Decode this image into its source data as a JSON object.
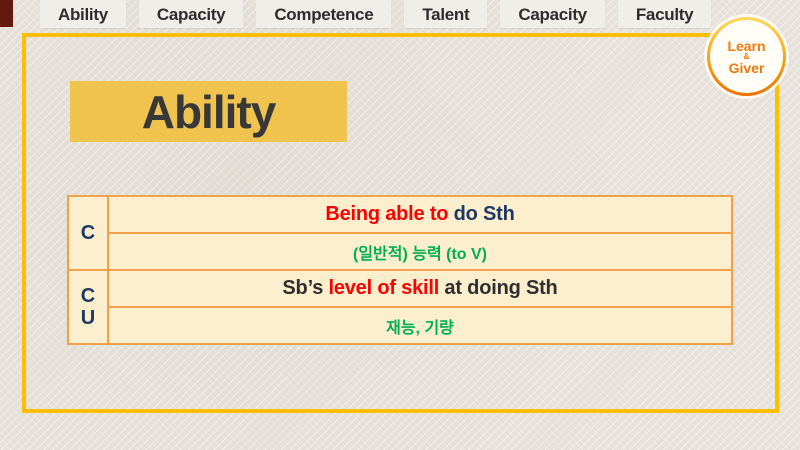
{
  "tabs": [
    {
      "label": "Ability"
    },
    {
      "label": "Capacity"
    },
    {
      "label": "Competence"
    },
    {
      "label": "Talent"
    },
    {
      "label": "Capacity"
    },
    {
      "label": "Faculty"
    }
  ],
  "badge": {
    "line1": "Learn",
    "line2": "&",
    "line3": "Giver"
  },
  "title": "Ability",
  "table": {
    "groups": [
      {
        "label": "C",
        "rows": [
          {
            "segments": [
              {
                "text": "Being able to",
                "color": "#fe0000"
              },
              {
                "text": " do Sth",
                "color": "#1f3864"
              }
            ]
          },
          {
            "segments": [
              {
                "text": "(일반적) 능력 (to V)",
                "color": "#00b050"
              }
            ]
          }
        ]
      },
      {
        "label_line1": "C",
        "label_line2": "U",
        "rows": [
          {
            "segments": [
              {
                "text": "Sb’s ",
                "color": "#2f2f2f"
              },
              {
                "text": "level of skill",
                "color": "#fe0000"
              },
              {
                "text": " at doing Sth",
                "color": "#2f2f2f"
              }
            ]
          },
          {
            "segments": [
              {
                "text": "재능, 기량",
                "color": "#00b050"
              }
            ]
          }
        ]
      }
    ]
  },
  "colors": {
    "background": "#e7e3dc",
    "frame": "#ffbe00",
    "title_highlight": "#f0c24e",
    "table_bg": "#fcefcd",
    "table_border": "#f0a14b",
    "red": "#fe0000",
    "navy": "#1f3864",
    "green": "#00b050",
    "badge_orange": "#f0780f",
    "corner_maroon": "#64170f"
  }
}
